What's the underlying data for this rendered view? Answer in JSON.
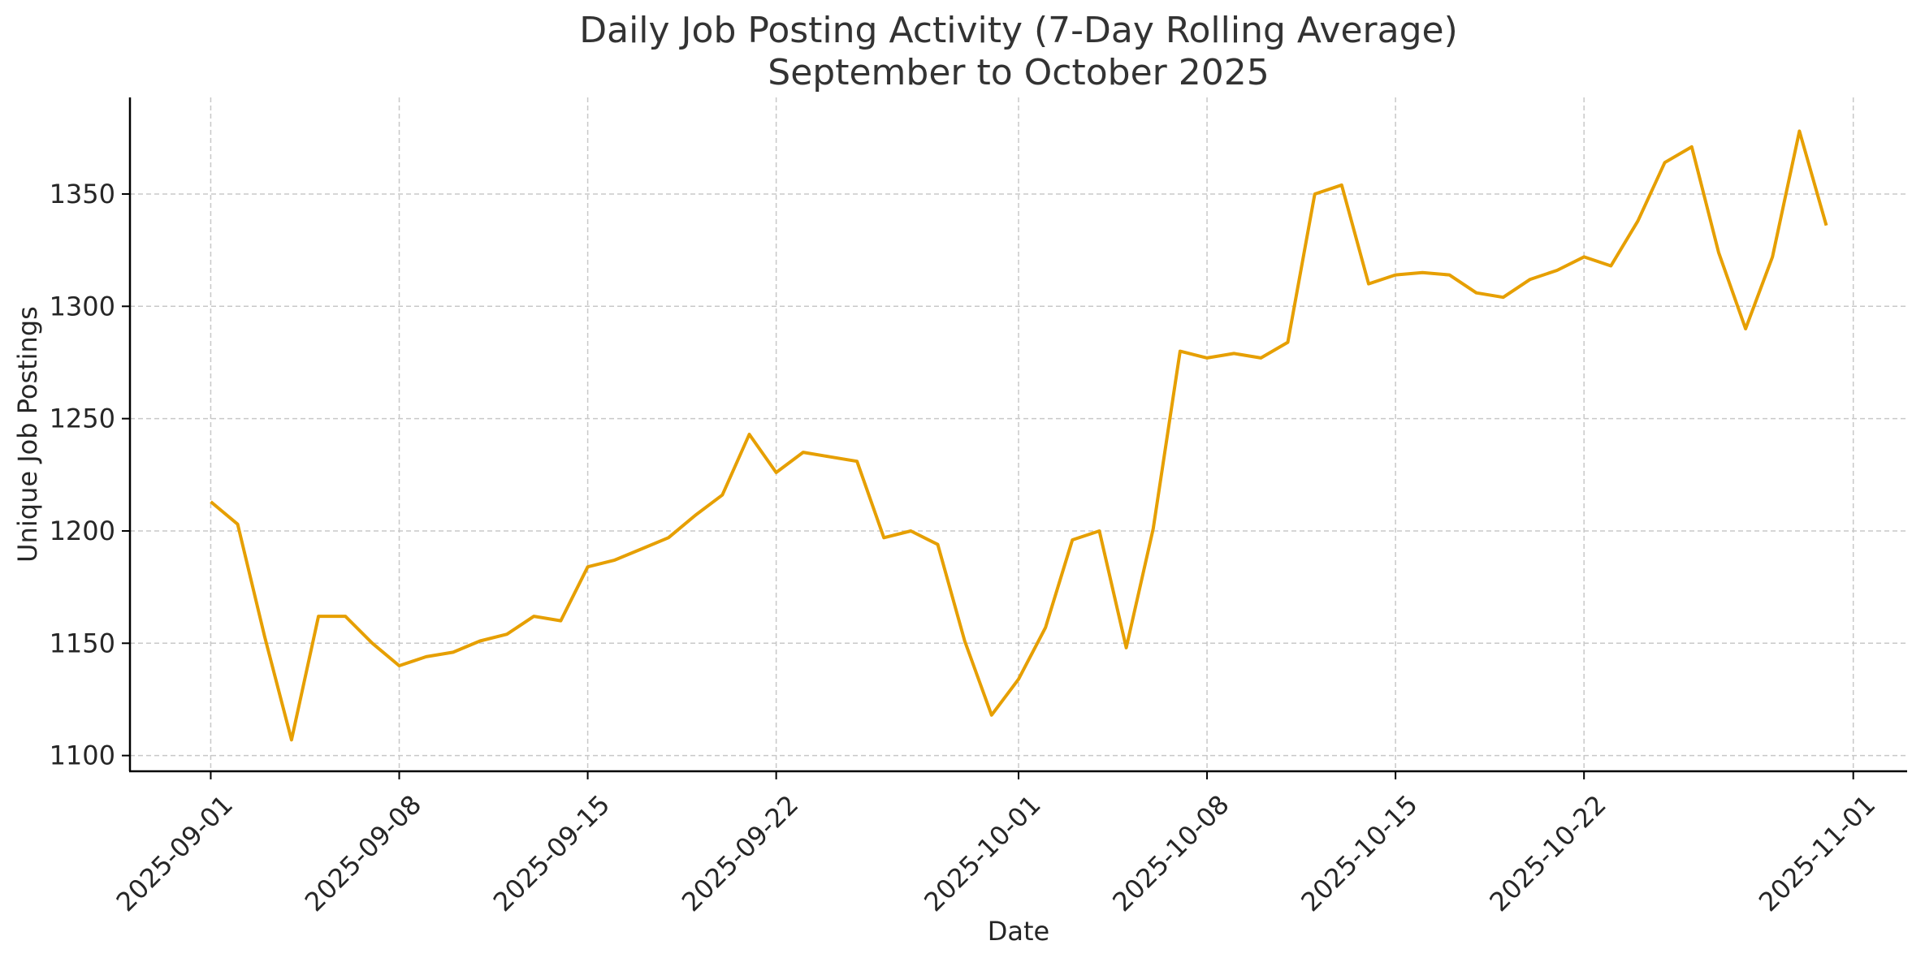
{
  "chart_data": {
    "type": "line",
    "title": "Daily Job Posting Activity (7-Day Rolling Average)",
    "subtitle": "September to October 2025",
    "xlabel": "Date",
    "ylabel": "Unique Job Postings",
    "xlim": [
      "2025-08-29",
      "2025-11-03"
    ],
    "ylim": [
      1093,
      1393
    ],
    "x_ticks": [
      "2025-09-01",
      "2025-09-08",
      "2025-09-15",
      "2025-09-22",
      "2025-10-01",
      "2025-10-08",
      "2025-10-15",
      "2025-10-22",
      "2025-11-01"
    ],
    "y_ticks": [
      1100,
      1150,
      1200,
      1250,
      1300,
      1350
    ],
    "grid": true,
    "line_color": "#E69F00",
    "series": [
      {
        "x": [
          "2025-09-01",
          "2025-09-02",
          "2025-09-03",
          "2025-09-04",
          "2025-09-05",
          "2025-09-06",
          "2025-09-07",
          "2025-09-08",
          "2025-09-09",
          "2025-09-10",
          "2025-09-11",
          "2025-09-12",
          "2025-09-13",
          "2025-09-14",
          "2025-09-15",
          "2025-09-16",
          "2025-09-17",
          "2025-09-18",
          "2025-09-19",
          "2025-09-20",
          "2025-09-21",
          "2025-09-22",
          "2025-09-23",
          "2025-09-24",
          "2025-09-25",
          "2025-09-26",
          "2025-09-27",
          "2025-09-28",
          "2025-09-29",
          "2025-09-30",
          "2025-10-01",
          "2025-10-02",
          "2025-10-03",
          "2025-10-04",
          "2025-10-05",
          "2025-10-06",
          "2025-10-07",
          "2025-10-08",
          "2025-10-09",
          "2025-10-10",
          "2025-10-11",
          "2025-10-12",
          "2025-10-13",
          "2025-10-14",
          "2025-10-15",
          "2025-10-16",
          "2025-10-17",
          "2025-10-18",
          "2025-10-19",
          "2025-10-20",
          "2025-10-21",
          "2025-10-22",
          "2025-10-23",
          "2025-10-24",
          "2025-10-25",
          "2025-10-26",
          "2025-10-27",
          "2025-10-28",
          "2025-10-29",
          "2025-10-30",
          "2025-10-31"
        ],
        "values": [
          1213,
          1203,
          1153,
          1107,
          1162,
          1162,
          1150,
          1140,
          1144,
          1146,
          1151,
          1154,
          1162,
          1160,
          1184,
          1187,
          1192,
          1197,
          1207,
          1216,
          1243,
          1226,
          1235,
          1233,
          1231,
          1197,
          1200,
          1194,
          1151,
          1118,
          1134,
          1157,
          1196,
          1200,
          1148,
          1201,
          1280,
          1277,
          1279,
          1277,
          1284,
          1350,
          1354,
          1310,
          1314,
          1315,
          1314,
          1306,
          1304,
          1312,
          1316,
          1322,
          1318,
          1338,
          1364,
          1371,
          1324,
          1290,
          1322,
          1378,
          1336
        ]
      }
    ]
  }
}
